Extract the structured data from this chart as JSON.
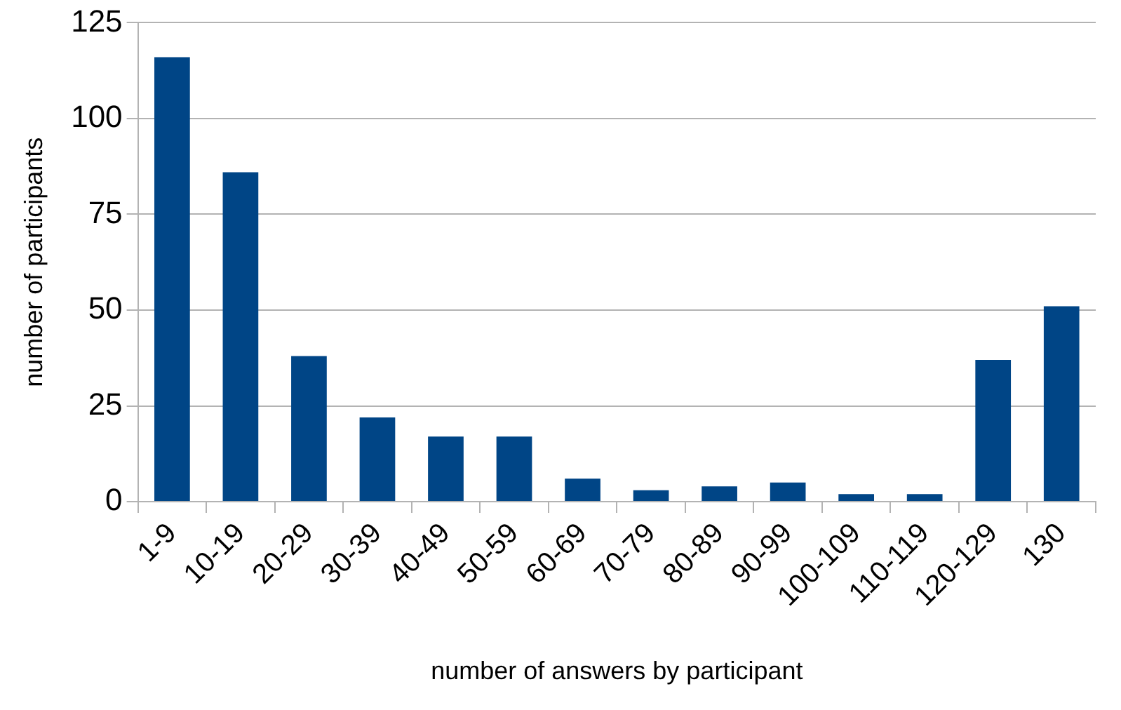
{
  "chart_data": {
    "type": "bar",
    "xlabel": "number of answers by participant",
    "ylabel": "number of participants",
    "categories": [
      "1-9",
      "10-19",
      "20-29",
      "30-39",
      "40-49",
      "50-59",
      "60-69",
      "70-79",
      "80-89",
      "90-99",
      "100-109",
      "110-119",
      "120-129",
      "130"
    ],
    "values": [
      116,
      86,
      38,
      22,
      17,
      17,
      6,
      3,
      4,
      5,
      2,
      2,
      37,
      51
    ],
    "color": "#004586",
    "ylim": [
      0,
      125
    ],
    "yticks": [
      0,
      25,
      50,
      75,
      100,
      125
    ],
    "grid": "y",
    "legend": false
  }
}
